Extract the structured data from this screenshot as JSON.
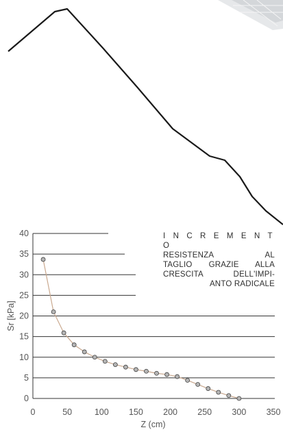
{
  "chart_data": {
    "type": "line",
    "xlabel": "Z (cm)",
    "ylabel": "Sr [kPa]",
    "xlim": [
      0,
      350
    ],
    "ylim": [
      0,
      40
    ],
    "x_ticks": [
      0,
      50,
      100,
      150,
      200,
      250,
      300,
      350
    ],
    "y_ticks": [
      0,
      5,
      10,
      15,
      20,
      25,
      30,
      35,
      40
    ],
    "grid": "horizontal",
    "series": [
      {
        "x": [
          15,
          30,
          45,
          60,
          75,
          90,
          105,
          120,
          135,
          150,
          165,
          180,
          195,
          210,
          225,
          240,
          255,
          270,
          285,
          300
        ],
        "y": [
          33.7,
          21.0,
          15.9,
          13.0,
          11.3,
          10.0,
          9.0,
          8.2,
          7.6,
          7.0,
          6.6,
          6.1,
          5.8,
          5.3,
          4.4,
          3.4,
          2.4,
          1.5,
          0.7,
          0.0
        ]
      }
    ],
    "line_color": "#c9a88e",
    "marker_color": "#b5b5b5",
    "annotation_lines": [
      "I N C R E M E N T O",
      "RESISTENZA AL",
      "TAGLIO GRAZIE ALLA",
      "CRESCITA DELL'IMPI-",
      "ANTO RADICALE"
    ]
  },
  "colors": {
    "profile_line": "#1a1a1a",
    "grid": "#333333",
    "text": "#555555"
  }
}
